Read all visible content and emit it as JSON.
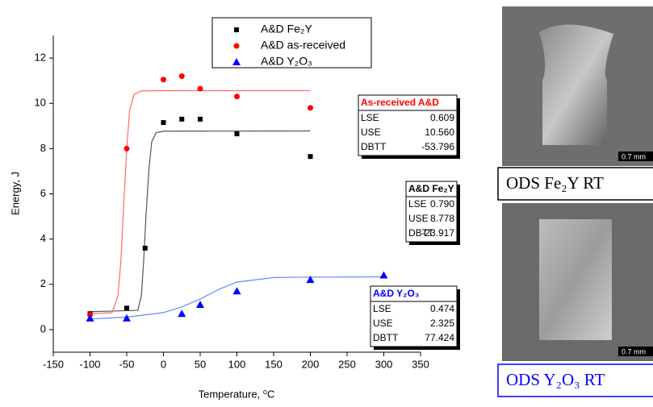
{
  "chart_data": {
    "type": "scatter",
    "x_label": "Temperature, ⁰C",
    "y_label": "Energy, J",
    "xlim": [
      -150,
      350
    ],
    "xticks": [
      -150,
      -100,
      -50,
      0,
      50,
      100,
      150,
      200,
      250,
      300,
      350
    ],
    "ylim": [
      -1,
      13
    ],
    "yticks": [
      0,
      2,
      4,
      6,
      8,
      10,
      12
    ],
    "grid": false,
    "series": [
      {
        "name": "A&D Fe₂Y",
        "color": "#000000",
        "marker": "square",
        "x": [
          -100,
          -50,
          -25,
          0,
          25,
          50,
          100,
          200
        ],
        "values": [
          0.7,
          0.95,
          3.6,
          9.15,
          9.3,
          9.3,
          8.65,
          7.65
        ]
      },
      {
        "name": "A&D as-received",
        "color": "#ff0000",
        "marker": "circle",
        "x": [
          -100,
          -50,
          0,
          25,
          50,
          100,
          200
        ],
        "values": [
          0.65,
          8.0,
          11.05,
          11.2,
          10.65,
          10.3,
          9.8
        ]
      },
      {
        "name": "A&D Y₂O₃",
        "color": "#0000ff",
        "marker": "triangle",
        "x": [
          -100,
          -50,
          25,
          50,
          100,
          200,
          300
        ],
        "values": [
          0.5,
          0.5,
          0.7,
          1.1,
          1.7,
          2.2,
          2.4
        ]
      }
    ],
    "fits": [
      {
        "color": "#555555",
        "x": [
          -100,
          -35,
          -30,
          -27,
          -24,
          -20,
          -16,
          -10,
          0,
          200
        ],
        "values": [
          0.79,
          0.85,
          1.5,
          3,
          4.9,
          7,
          8.3,
          8.7,
          8.77,
          8.78
        ]
      },
      {
        "color": "#ff6b6b",
        "x": [
          -100,
          -70,
          -62,
          -58,
          -54,
          -50,
          -46,
          -40,
          -30,
          0,
          200
        ],
        "values": [
          0.7,
          0.75,
          1.5,
          3,
          5.6,
          8,
          9.7,
          10.4,
          10.55,
          10.56,
          10.56
        ]
      },
      {
        "color": "#6688ff",
        "x": [
          -100,
          -50,
          0,
          25,
          50,
          77,
          100,
          150,
          200,
          300
        ],
        "values": [
          0.47,
          0.55,
          0.75,
          1.0,
          1.35,
          1.8,
          2.1,
          2.3,
          2.32,
          2.33
        ]
      }
    ],
    "fit_boxes": [
      {
        "title": "As-received A&D",
        "color": "#ff0000",
        "rows": [
          [
            "LSE",
            "0.609"
          ],
          [
            "USE",
            "10.560"
          ],
          [
            "DBTT",
            "-53.796"
          ]
        ]
      },
      {
        "title": "A&D Fe₂Y",
        "color": "#000000",
        "rows": [
          [
            "LSE",
            "0.790"
          ],
          [
            "USE",
            "8.778"
          ],
          [
            "DBTT",
            "-23.917"
          ]
        ]
      },
      {
        "title": "A&D Y₂O₃",
        "color": "#0000ff",
        "rows": [
          [
            "LSE",
            "0.474"
          ],
          [
            "USE",
            "2.325"
          ],
          [
            "DBTT",
            "77.424"
          ]
        ]
      }
    ]
  },
  "images": [
    {
      "caption": "ODS Fe₂Y  RT",
      "scale": "0.7 mm"
    },
    {
      "caption": "ODS Y₂O₃  RT",
      "scale": "0.7 mm"
    }
  ]
}
